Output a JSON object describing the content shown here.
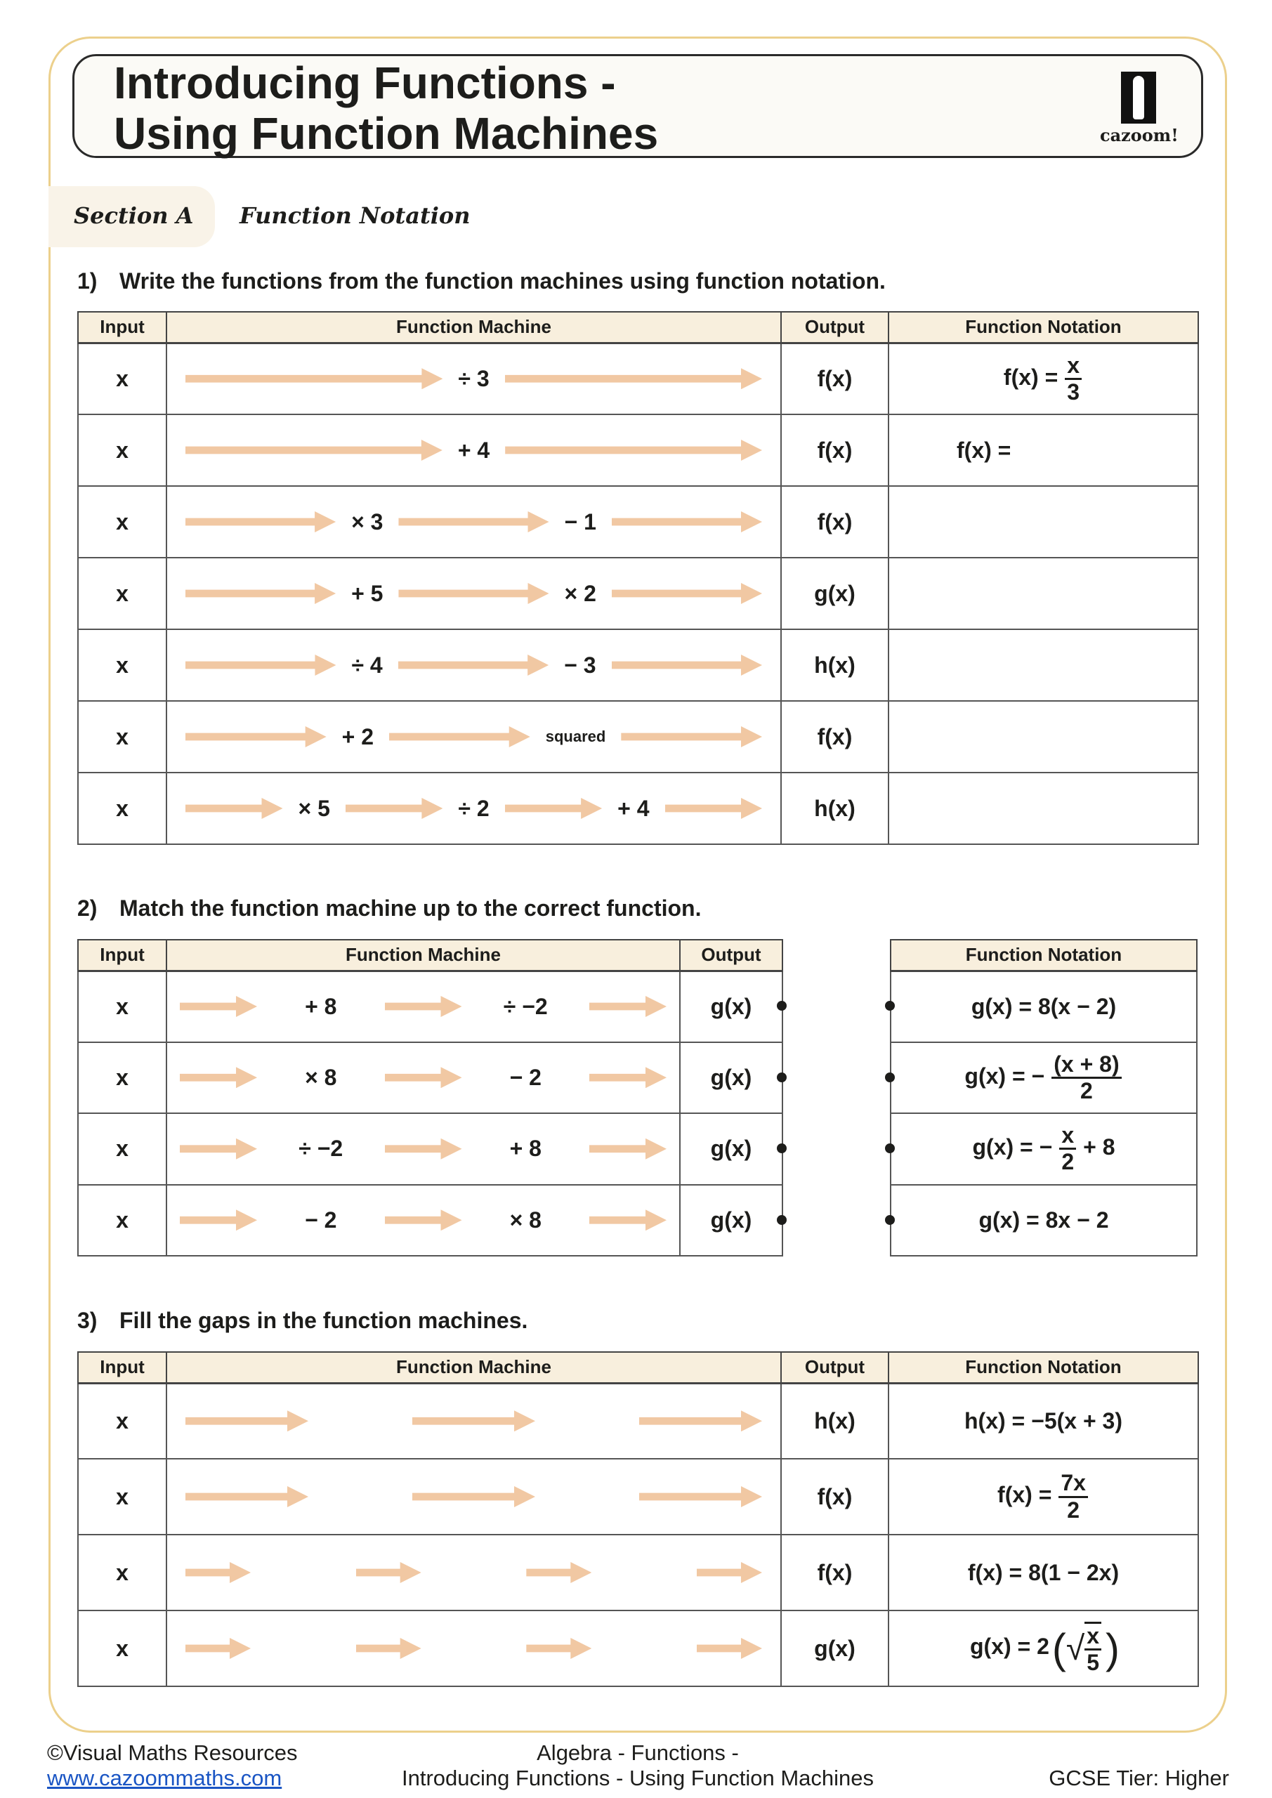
{
  "header": {
    "title_line1": "Introducing Functions -",
    "title_line2": "Using Function Machines",
    "logo_text": "cazoom!"
  },
  "section": {
    "label": "Section A",
    "title": "Function Notation"
  },
  "colors": {
    "arrow": "#f1c8a3",
    "header_fill": "#f8efdd",
    "frame": "#ecd08c"
  },
  "q1": {
    "number": "1)",
    "text": "Write the functions from the function machines using function notation.",
    "headers": [
      "Input",
      "Function Machine",
      "Output",
      "Function Notation"
    ],
    "rows": [
      {
        "input": "x",
        "ops": [
          "÷ 3"
        ],
        "output": "f(x)",
        "notation": [
          {
            "text": "f(x) ="
          },
          {
            "num": "x",
            "den": "3"
          }
        ]
      },
      {
        "input": "x",
        "ops": [
          "+ 4"
        ],
        "output": "f(x)",
        "notation": [
          {
            "text": "f(x) ="
          }
        ],
        "align": "left"
      },
      {
        "input": "x",
        "ops": [
          "× 3",
          "− 1"
        ],
        "output": "f(x)",
        "notation": []
      },
      {
        "input": "x",
        "ops": [
          "+ 5",
          "× 2"
        ],
        "output": "g(x)",
        "notation": []
      },
      {
        "input": "x",
        "ops": [
          "÷ 4",
          "− 3"
        ],
        "output": "h(x)",
        "notation": []
      },
      {
        "input": "x",
        "ops": [
          "+ 2",
          "squared"
        ],
        "output": "f(x)",
        "notation": []
      },
      {
        "input": "x",
        "ops": [
          "× 5",
          "÷ 2",
          "+ 4"
        ],
        "output": "h(x)",
        "notation": []
      }
    ]
  },
  "q2": {
    "number": "2)",
    "text": "Match the function machine up to the correct function.",
    "headers": [
      "Input",
      "Function Machine",
      "Output"
    ],
    "notation_header": "Function Notation",
    "rows": [
      {
        "input": "x",
        "ops": [
          "+ 8",
          "÷ −2"
        ],
        "output": "g(x)"
      },
      {
        "input": "x",
        "ops": [
          "× 8",
          "− 2"
        ],
        "output": "g(x)"
      },
      {
        "input": "x",
        "ops": [
          "÷ −2",
          "+ 8"
        ],
        "output": "g(x)"
      },
      {
        "input": "x",
        "ops": [
          "− 2",
          "× 8"
        ],
        "output": "g(x)"
      }
    ],
    "notations": [
      [
        {
          "text": "g(x) = 8(x − 2)"
        }
      ],
      [
        {
          "text": "g(x) = −"
        },
        {
          "num": "(x + 8)",
          "den": "2"
        }
      ],
      [
        {
          "text": "g(x) = −"
        },
        {
          "num": "x",
          "den": "2"
        },
        {
          "text": "+ 8"
        }
      ],
      [
        {
          "text": "g(x) = 8x − 2"
        }
      ]
    ]
  },
  "q3": {
    "number": "3)",
    "text": "Fill the gaps in the function machines.",
    "headers": [
      "Input",
      "Function Machine",
      "Output",
      "Function Notation"
    ],
    "rows": [
      {
        "input": "x",
        "arrows": 3,
        "output": "h(x)",
        "notation": [
          {
            "text": "h(x) = −5(x + 3)"
          }
        ]
      },
      {
        "input": "x",
        "arrows": 3,
        "output": "f(x)",
        "notation": [
          {
            "text": "f(x) ="
          },
          {
            "num": "7x",
            "den": "2"
          }
        ]
      },
      {
        "input": "x",
        "arrows": 4,
        "output": "f(x)",
        "notation": [
          {
            "text": "f(x) = 8(1 − 2x)"
          }
        ]
      },
      {
        "input": "x",
        "arrows": 4,
        "output": "g(x)",
        "notation": [
          {
            "text": "g(x) = 2"
          },
          {
            "open": "(",
            "root": "√",
            "num": "x",
            "den": "5",
            "close": ")"
          }
        ]
      }
    ]
  },
  "footer": {
    "copyright": "©Visual Maths Resources",
    "link": "www.cazoommaths.com",
    "topic_line1": "Algebra - Functions -",
    "topic_line2": "Introducing Functions - Using Function Machines",
    "tier": "GCSE Tier: Higher"
  }
}
